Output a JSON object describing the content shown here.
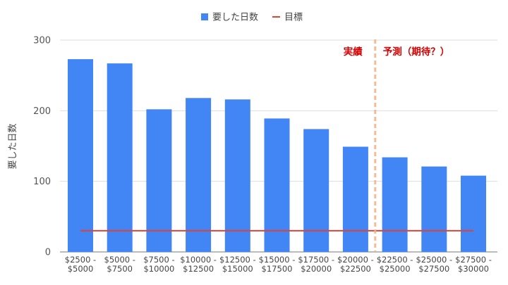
{
  "chart_data": {
    "type": "bar",
    "title": "",
    "xlabel": "",
    "ylabel": "要した日数",
    "ylim": [
      0,
      300
    ],
    "y_ticks": [
      0,
      100,
      200,
      300
    ],
    "grid": true,
    "legend_position": "top-center",
    "categories": [
      [
        "$2500 -",
        "$5000"
      ],
      [
        "$5000 -",
        "$7500"
      ],
      [
        "$7500 -",
        "$10000"
      ],
      [
        "$10000 -",
        "$12500"
      ],
      [
        "$12500 -",
        "$15000"
      ],
      [
        "$15000 -",
        "$17500"
      ],
      [
        "$17500 -",
        "$20000"
      ],
      [
        "$20000 -",
        "$22500"
      ],
      [
        "$22500 -",
        "$25000"
      ],
      [
        "$25000 -",
        "$27500"
      ],
      [
        "$27500 -",
        "$30000"
      ]
    ],
    "series": [
      {
        "name": "要した日数",
        "kind": "bar",
        "color": "#4285f4",
        "values": [
          273,
          267,
          202,
          218,
          216,
          189,
          174,
          149,
          134,
          121,
          108
        ]
      },
      {
        "name": "目標",
        "kind": "line",
        "color": "#db4437",
        "values": [
          30,
          30,
          30,
          30,
          30,
          30,
          30,
          30,
          30,
          30,
          30
        ]
      }
    ],
    "annotations": {
      "divider_between_index": [
        7,
        8
      ],
      "divider_color": "#f4b183",
      "left_label": "実績",
      "right_label": "予測（期待？）",
      "label_color": "#d40000"
    }
  }
}
